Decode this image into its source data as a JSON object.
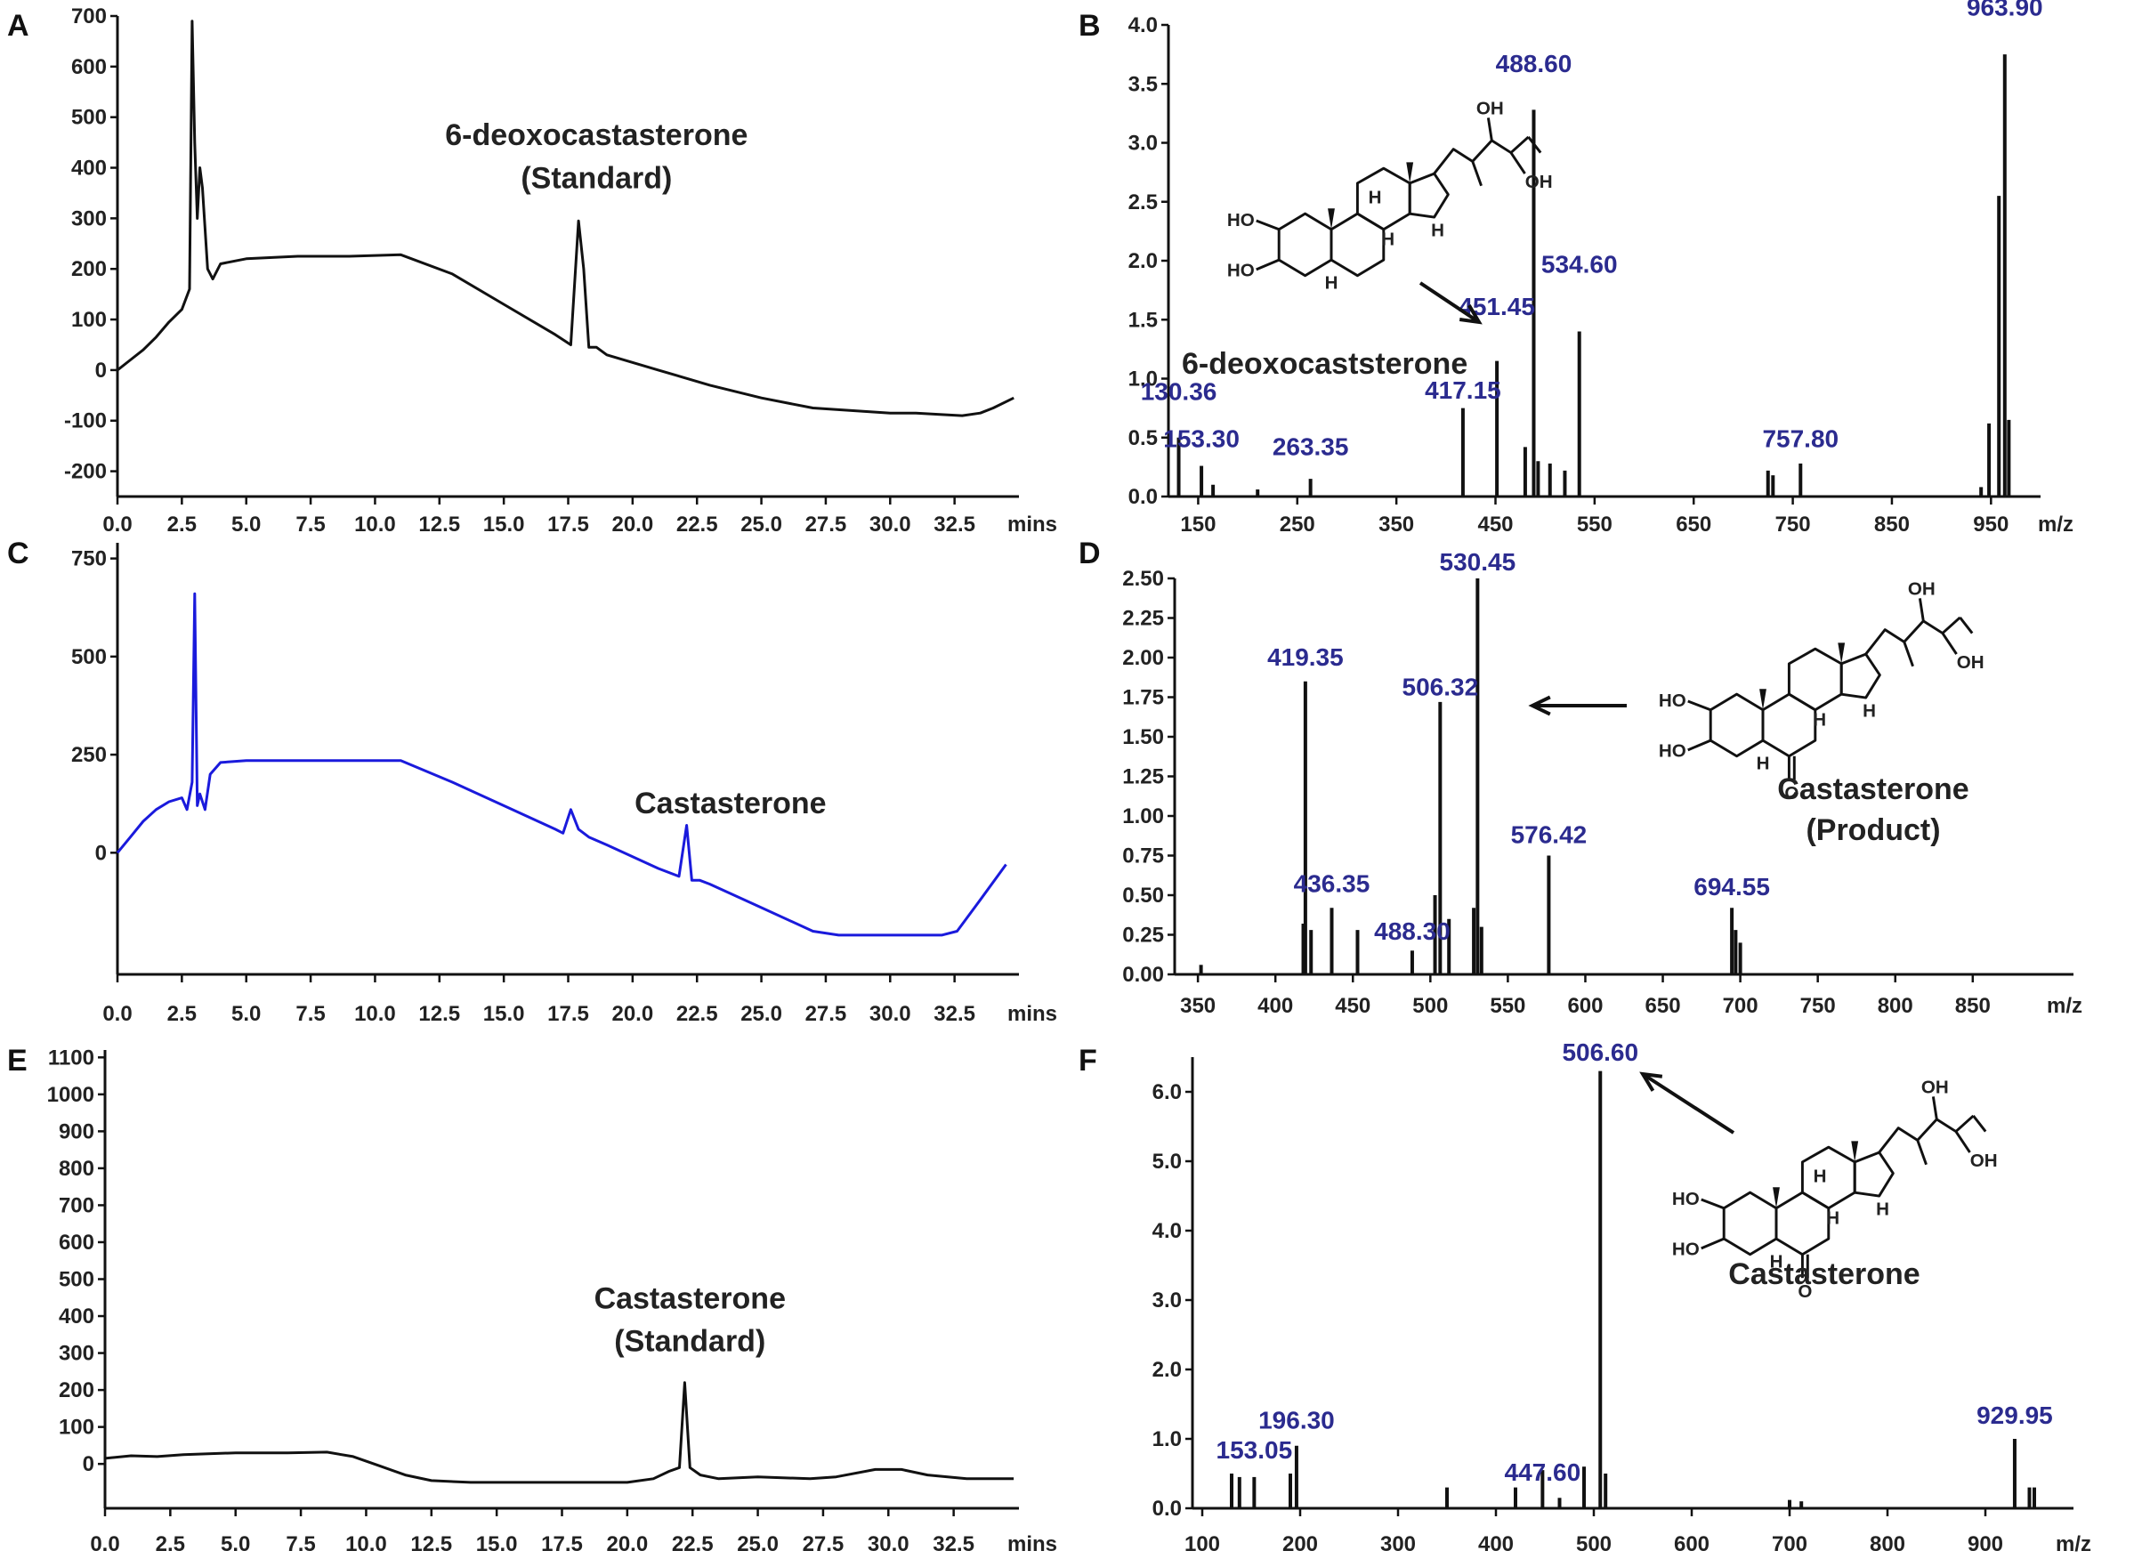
{
  "chart_data": [
    {
      "id": "A",
      "type": "line",
      "panel_label": "A",
      "color": "#111111",
      "xlabel": "mins",
      "xlim": [
        0,
        35
      ],
      "ylim": [
        -250,
        700
      ],
      "xticks": [
        "0.0",
        "2.5",
        "5.0",
        "7.5",
        "10.0",
        "12.5",
        "15.0",
        "17.5",
        "20.0",
        "22.5",
        "25.0",
        "27.5",
        "30.0",
        "32.5"
      ],
      "xtick_values": [
        0,
        2.5,
        5,
        7.5,
        10,
        12.5,
        15,
        17.5,
        20,
        22.5,
        25,
        27.5,
        30,
        32.5
      ],
      "yticks": [
        "700",
        "600",
        "500",
        "400",
        "300",
        "200",
        "100",
        "0",
        "-100",
        "-200"
      ],
      "ytick_values": [
        700,
        600,
        500,
        400,
        300,
        200,
        100,
        0,
        -100,
        -200
      ],
      "series": [
        {
          "name": "chromatogram",
          "x": [
            0,
            0.5,
            1,
            1.5,
            2,
            2.5,
            2.8,
            2.9,
            3.0,
            3.1,
            3.2,
            3.3,
            3.5,
            3.7,
            4,
            5,
            7,
            9,
            11,
            13,
            15,
            17,
            17.6,
            17.9,
            18.1,
            18.3,
            18.6,
            19,
            21,
            23,
            25,
            27,
            30,
            31,
            32,
            32.8,
            33.5,
            34,
            34.8
          ],
          "y": [
            0,
            20,
            40,
            65,
            95,
            120,
            160,
            690,
            450,
            300,
            400,
            360,
            200,
            180,
            210,
            220,
            225,
            225,
            228,
            190,
            130,
            70,
            50,
            295,
            200,
            45,
            45,
            30,
            0,
            -30,
            -55,
            -75,
            -85,
            -85,
            -88,
            -90,
            -85,
            -75,
            -55
          ]
        }
      ],
      "annotations": [
        {
          "text": "6-deoxocastasterone",
          "x": 18.6,
          "y": 445
        },
        {
          "text": "(Standard)",
          "x": 18.6,
          "y": 360
        }
      ]
    },
    {
      "id": "B",
      "type": "bar",
      "panel_label": "B",
      "color": "#111111",
      "xlabel": "m/z",
      "xlim": [
        120,
        1000
      ],
      "ylim": [
        0,
        4.0
      ],
      "xticks": [
        "150",
        "250",
        "350",
        "450",
        "550",
        "650",
        "750",
        "850",
        "950"
      ],
      "xtick_values": [
        150,
        250,
        350,
        450,
        550,
        650,
        750,
        850,
        950
      ],
      "yticks": [
        "4.0",
        "3.5",
        "3.0",
        "2.5",
        "2.0",
        "1.5",
        "1.0",
        "0.5",
        "0.0"
      ],
      "ytick_values": [
        4.0,
        3.5,
        3.0,
        2.5,
        2.0,
        1.5,
        1.0,
        0.5,
        0.0
      ],
      "x": [
        130.36,
        153.3,
        263.35,
        417.15,
        451.45,
        488.6,
        534.6,
        757.8,
        963.9,
        948,
        958,
        968,
        480,
        493,
        505,
        520,
        725,
        730,
        940,
        165,
        210
      ],
      "y": [
        0.5,
        0.26,
        0.15,
        0.75,
        1.15,
        3.28,
        1.4,
        0.28,
        3.75,
        0.62,
        2.55,
        0.65,
        0.42,
        0.3,
        0.28,
        0.22,
        0.22,
        0.18,
        0.08,
        0.1,
        0.06
      ],
      "labels": [
        {
          "text": "130.36",
          "mz": 130.36,
          "y": 0.82
        },
        {
          "text": "153.30",
          "mz": 153.3,
          "y": 0.42
        },
        {
          "text": "263.35",
          "mz": 263.35,
          "y": 0.35
        },
        {
          "text": "417.15",
          "mz": 417.15,
          "y": 0.83
        },
        {
          "text": "451.45",
          "mz": 451.45,
          "y": 1.54
        },
        {
          "text": "488.60",
          "mz": 488.6,
          "y": 3.6
        },
        {
          "text": "534.60",
          "mz": 534.6,
          "y": 1.9
        },
        {
          "text": "757.80",
          "mz": 757.8,
          "y": 0.42
        },
        {
          "text": "963.90",
          "mz": 963.9,
          "y": 4.08
        }
      ],
      "compound_label": "6-deoxocaststerone",
      "structure_labels": {
        "ho1": "HO",
        "ho2": "HO",
        "oh1": "OH",
        "oh2": "OH",
        "h1": "H",
        "h2": "H",
        "h3": "H",
        "h4": "H"
      }
    },
    {
      "id": "C",
      "type": "line",
      "panel_label": "C",
      "color": "#1a1adc",
      "xlabel": "mins",
      "xlim": [
        0,
        35
      ],
      "ylim": [
        -310,
        790
      ],
      "xticks": [
        "0.0",
        "2.5",
        "5.0",
        "7.5",
        "10.0",
        "12.5",
        "15.0",
        "17.5",
        "20.0",
        "22.5",
        "25.0",
        "27.5",
        "30.0",
        "32.5"
      ],
      "xtick_values": [
        0,
        2.5,
        5,
        7.5,
        10,
        12.5,
        15,
        17.5,
        20,
        22.5,
        25,
        27.5,
        30,
        32.5
      ],
      "yticks": [
        "750",
        "500",
        "250",
        "0"
      ],
      "ytick_values": [
        750,
        500,
        250,
        0
      ],
      "series": [
        {
          "name": "chromatogram",
          "x": [
            0,
            0.5,
            1,
            1.5,
            2,
            2.5,
            2.7,
            2.9,
            3.0,
            3.1,
            3.2,
            3.4,
            3.6,
            4,
            5,
            7,
            9,
            11,
            13,
            15,
            17,
            17.3,
            17.6,
            17.9,
            18.3,
            19,
            21,
            21.8,
            22.1,
            22.3,
            22.6,
            23,
            25,
            27,
            28,
            30,
            32,
            32.6,
            33.5,
            34.5
          ],
          "y": [
            0,
            40,
            80,
            110,
            130,
            140,
            110,
            180,
            660,
            120,
            150,
            110,
            200,
            230,
            235,
            235,
            235,
            235,
            180,
            120,
            60,
            50,
            110,
            60,
            40,
            20,
            -40,
            -60,
            70,
            -70,
            -70,
            -80,
            -140,
            -200,
            -210,
            -210,
            -210,
            -200,
            -120,
            -30
          ]
        }
      ],
      "annotations": [
        {
          "text": "Castasterone",
          "x": 23.8,
          "y": 100
        }
      ]
    },
    {
      "id": "D",
      "type": "bar",
      "panel_label": "D",
      "color": "#111111",
      "xlabel": "m/z",
      "xlim": [
        335,
        915
      ],
      "ylim": [
        0,
        2.5
      ],
      "xticks": [
        "350",
        "400",
        "450",
        "500",
        "550",
        "600",
        "650",
        "700",
        "750",
        "800",
        "850"
      ],
      "xtick_values": [
        350,
        400,
        450,
        500,
        550,
        600,
        650,
        700,
        750,
        800,
        850
      ],
      "yticks": [
        "2.50",
        "2.25",
        "2.00",
        "1.75",
        "1.50",
        "1.25",
        "1.00",
        "0.75",
        "0.50",
        "0.25",
        "0.00"
      ],
      "ytick_values": [
        2.5,
        2.25,
        2.0,
        1.75,
        1.5,
        1.25,
        1.0,
        0.75,
        0.5,
        0.25,
        0.0
      ],
      "x": [
        419.35,
        436.35,
        488.3,
        506.32,
        530.45,
        576.42,
        694.55,
        418,
        423,
        453,
        503,
        512,
        528,
        533,
        697,
        700,
        352
      ],
      "y": [
        1.85,
        0.42,
        0.15,
        1.72,
        2.5,
        0.75,
        0.42,
        0.32,
        0.28,
        0.28,
        0.5,
        0.35,
        0.42,
        0.3,
        0.28,
        0.2,
        0.06
      ],
      "labels": [
        {
          "text": "419.35",
          "mz": 419.35,
          "y": 1.95
        },
        {
          "text": "436.35",
          "mz": 436.35,
          "y": 0.52
        },
        {
          "text": "488.30",
          "mz": 488.3,
          "y": 0.22
        },
        {
          "text": "506.32",
          "mz": 506.32,
          "y": 1.76
        },
        {
          "text": "530.45",
          "mz": 530.45,
          "y": 2.55
        },
        {
          "text": "576.42",
          "mz": 576.42,
          "y": 0.83
        },
        {
          "text": "694.55",
          "mz": 694.55,
          "y": 0.5
        }
      ],
      "compound_label": "Castasterone",
      "compound_sub": "(Product)",
      "structure_labels": {
        "ho1": "HO",
        "ho2": "HO",
        "oh1": "OH",
        "oh2": "OH",
        "h1": "H",
        "h2": "H",
        "h3": "H",
        "o": "O"
      }
    },
    {
      "id": "E",
      "type": "line",
      "panel_label": "E",
      "color": "#111111",
      "xlabel": "mins",
      "xlim": [
        0,
        35
      ],
      "ylim": [
        -120,
        1120
      ],
      "xticks": [
        "0.0",
        "2.5",
        "5.0",
        "7.5",
        "10.0",
        "12.5",
        "15.0",
        "17.5",
        "20.0",
        "22.5",
        "25.0",
        "27.5",
        "30.0",
        "32.5"
      ],
      "xtick_values": [
        0,
        2.5,
        5,
        7.5,
        10,
        12.5,
        15,
        17.5,
        20,
        22.5,
        25,
        27.5,
        30,
        32.5
      ],
      "yticks": [
        "1100",
        "1000",
        "900",
        "800",
        "700",
        "600",
        "500",
        "400",
        "300",
        "200",
        "100",
        "0"
      ],
      "ytick_values": [
        1100,
        1000,
        900,
        800,
        700,
        600,
        500,
        400,
        300,
        200,
        100,
        0
      ],
      "series": [
        {
          "name": "chromatogram",
          "x": [
            0,
            1,
            2,
            3,
            5,
            7,
            8.5,
            9.5,
            10.5,
            11.5,
            12.5,
            14,
            16,
            18,
            20,
            21,
            21.6,
            22.0,
            22.2,
            22.4,
            22.8,
            23.5,
            25,
            27,
            28,
            29.5,
            30.5,
            31.5,
            33,
            34.8
          ],
          "y": [
            15,
            22,
            20,
            25,
            30,
            30,
            32,
            20,
            -5,
            -30,
            -45,
            -50,
            -50,
            -50,
            -50,
            -40,
            -20,
            -10,
            220,
            -10,
            -30,
            -40,
            -35,
            -40,
            -35,
            -15,
            -15,
            -30,
            -40,
            -40
          ]
        }
      ],
      "annotations": [
        {
          "text": "Castasterone",
          "x": 22.4,
          "y": 420
        },
        {
          "text": "(Standard)",
          "x": 22.4,
          "y": 305
        }
      ]
    },
    {
      "id": "F",
      "type": "bar",
      "panel_label": "F",
      "color": "#111111",
      "xlabel": "m/z",
      "xlim": [
        90,
        990
      ],
      "ylim": [
        0,
        6.5
      ],
      "xticks": [
        "100",
        "200",
        "300",
        "400",
        "500",
        "600",
        "700",
        "800",
        "900"
      ],
      "xtick_values": [
        100,
        200,
        300,
        400,
        500,
        600,
        700,
        800,
        900
      ],
      "yticks": [
        "6.0",
        "5.0",
        "4.0",
        "3.0",
        "2.0",
        "1.0",
        "0.0"
      ],
      "ytick_values": [
        6.0,
        5.0,
        4.0,
        3.0,
        2.0,
        1.0,
        0.0
      ],
      "x": [
        153.05,
        196.3,
        447.6,
        506.6,
        929.95,
        130,
        138,
        190,
        350,
        420,
        465,
        490,
        512,
        700,
        712,
        945,
        950
      ],
      "y": [
        0.45,
        0.9,
        0.55,
        6.3,
        1.0,
        0.5,
        0.45,
        0.5,
        0.3,
        0.3,
        0.15,
        0.6,
        0.5,
        0.12,
        0.1,
        0.3,
        0.3
      ],
      "labels": [
        {
          "text": "153.05",
          "mz": 153.05,
          "y": 0.72
        },
        {
          "text": "196.30",
          "mz": 196.3,
          "y": 1.15
        },
        {
          "text": "447.60",
          "mz": 447.6,
          "y": 0.4
        },
        {
          "text": "506.60",
          "mz": 506.6,
          "y": 6.45
        },
        {
          "text": "929.95",
          "mz": 929.95,
          "y": 1.22
        }
      ],
      "compound_label": "Castasterone",
      "structure_labels": {
        "ho1": "HO",
        "ho2": "HO",
        "oh1": "OH",
        "oh2": "OH",
        "h1": "H",
        "h2": "H",
        "h3": "H",
        "h4": "H",
        "o": "O"
      }
    }
  ]
}
